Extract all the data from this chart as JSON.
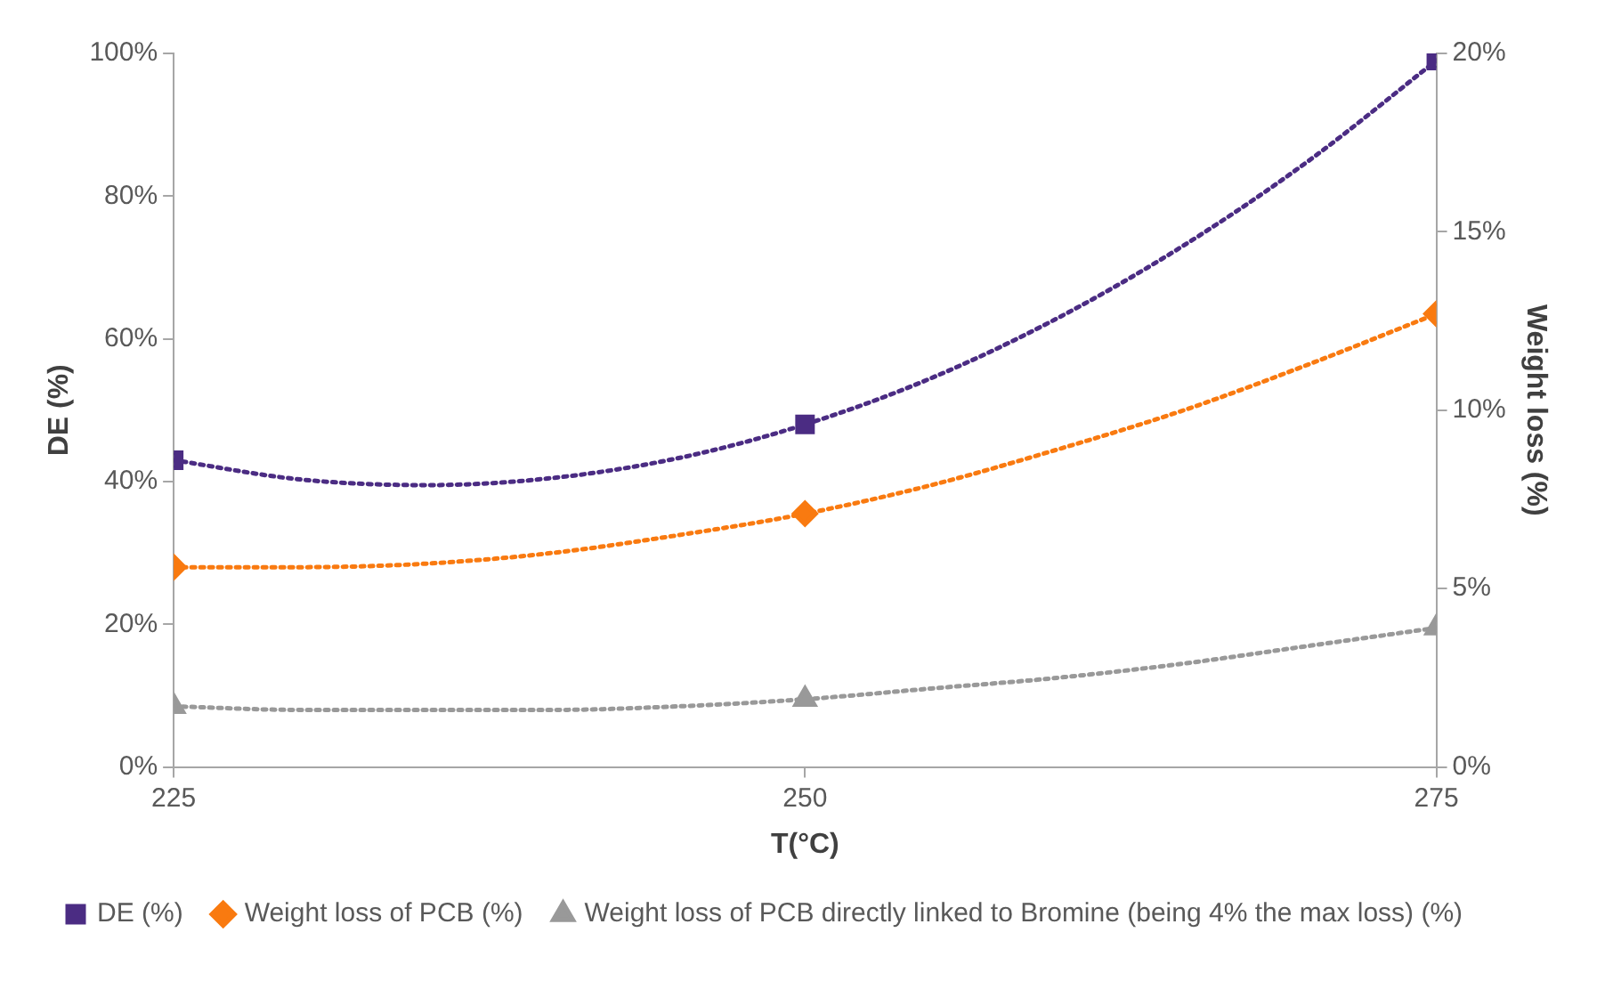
{
  "chart_data": {
    "type": "scatter",
    "xlabel": "T(°C)",
    "ylabel": "DE (%)",
    "y2label": "Weight loss (%)",
    "x": [
      225,
      250,
      275
    ],
    "xlim": [
      225,
      275
    ],
    "xticks": [
      225,
      250,
      275
    ],
    "ylim": [
      0,
      100
    ],
    "yticks": [
      {
        "value": 0,
        "label": "0%"
      },
      {
        "value": 20,
        "label": "20%"
      },
      {
        "value": 40,
        "label": "40%"
      },
      {
        "value": 60,
        "label": "60%"
      },
      {
        "value": 80,
        "label": "80%"
      },
      {
        "value": 100,
        "label": "100%"
      }
    ],
    "y2lim": [
      0,
      20
    ],
    "y2ticks": [
      {
        "value": 0,
        "label": "0%"
      },
      {
        "value": 5,
        "label": "5%"
      },
      {
        "value": 10,
        "label": "10%"
      },
      {
        "value": 15,
        "label": "15%"
      },
      {
        "value": 20,
        "label": "20%"
      }
    ],
    "grid": false,
    "legend": "bottom",
    "series": [
      {
        "name": "DE (%)",
        "color": "#4b2c83",
        "values": [
          43,
          48,
          99
        ],
        "marker": "square"
      },
      {
        "name": "Weight loss of PCB (%)",
        "color": "#f97a10",
        "values": [
          5.6,
          7.1,
          12.7
        ],
        "axis": "y2",
        "marker": "diamond"
      },
      {
        "name": "Weight loss of PCB directly linked to Bromine (being 4% the max loss) (%)",
        "color": "#999999",
        "values": [
          1.7,
          1.9,
          3.9
        ],
        "axis": "y2",
        "marker": "triangle"
      },
      {
        "type": "line",
        "color": "#4b2c83",
        "x": [
          225,
          230,
          235,
          240,
          245,
          250,
          255,
          260,
          265,
          270,
          275
        ],
        "values": [
          43,
          40.3,
          39.5,
          40.5,
          43.3,
          48,
          54.5,
          62.9,
          73.1,
          85.1,
          99
        ],
        "marker": "none",
        "line_style": "dotted"
      },
      {
        "type": "line",
        "color": "#f97a10",
        "axis": "y2",
        "x": [
          225,
          230,
          235,
          240,
          245,
          250,
          255,
          260,
          265,
          270,
          275
        ],
        "values": [
          5.6,
          5.6,
          5.7,
          6,
          6.5,
          7.1,
          7.9,
          8.9,
          10,
          11.3,
          12.7
        ],
        "marker": "none",
        "line_style": "dotted"
      },
      {
        "type": "line",
        "color": "#999999",
        "axis": "y2",
        "x": [
          225,
          230,
          235,
          240,
          245,
          250,
          255,
          260,
          265,
          270,
          275
        ],
        "values": [
          1.7,
          1.6,
          1.6,
          1.6,
          1.7,
          1.9,
          2.2,
          2.5,
          2.9,
          3.4,
          3.9
        ],
        "marker": "none",
        "line_style": "dotted"
      }
    ]
  }
}
